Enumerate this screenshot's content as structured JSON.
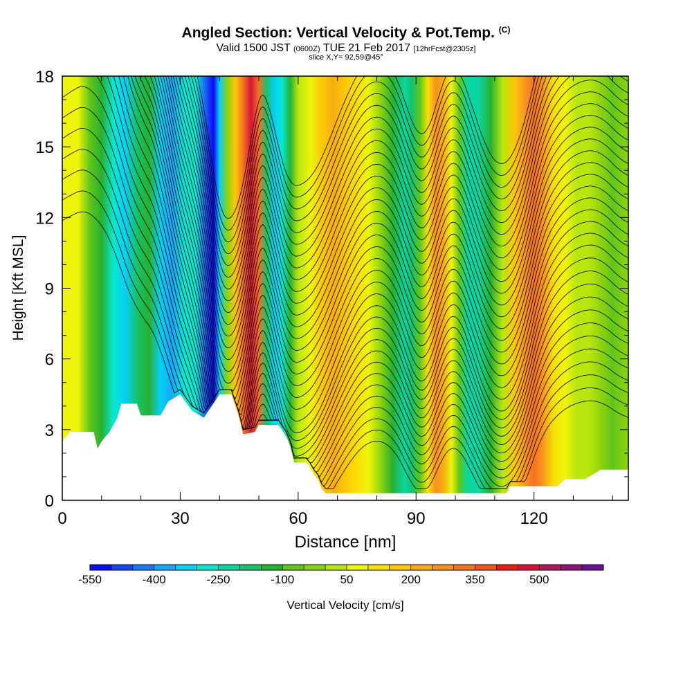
{
  "title": {
    "main": "Angled Section: Vertical Velocity & Pot.Temp.",
    "main_suffix": "(C)",
    "valid_prefix": "Valid 1500 JST",
    "valid_zulu": "(0600Z)",
    "valid_date": "TUE 21 Feb 2017",
    "forecast": "[12hrFcst@2305z]",
    "slice": "slice X,Y= 92,59@45°"
  },
  "chart_data": {
    "type": "heatmap",
    "xlabel": "Distance [nm]",
    "ylabel": "Height [Kft MSL]",
    "xlim": [
      0,
      144
    ],
    "ylim": [
      0,
      18
    ],
    "x_ticks": [
      "0",
      "30",
      "60",
      "90",
      "120"
    ],
    "y_ticks": [
      "0",
      "3",
      "6",
      "9",
      "12",
      "15",
      "18"
    ],
    "colorbar": {
      "label": "Vertical Velocity [cm/s]",
      "tick_labels": [
        "-550",
        "-400",
        "-250",
        "-100",
        "50",
        "200",
        "350",
        "500"
      ],
      "levels": [
        -550,
        -500,
        -450,
        -400,
        -350,
        -300,
        -250,
        -200,
        -150,
        -100,
        -50,
        0,
        50,
        100,
        150,
        200,
        250,
        300,
        350,
        400,
        450,
        500,
        550,
        600
      ],
      "colors": [
        "#0a0cf0",
        "#1846f7",
        "#1a78fa",
        "#14a8fb",
        "#05d0f5",
        "#06e8d2",
        "#0ad6a0",
        "#16c26c",
        "#28b030",
        "#60c61a",
        "#8ed40e",
        "#b8e60e",
        "#eef40a",
        "#f8e004",
        "#fcc808",
        "#f8ae10",
        "#f89020",
        "#f47422",
        "#f2541c",
        "#ee1c14",
        "#d8143a",
        "#b01856",
        "#8c1476",
        "#6c1096"
      ]
    },
    "columns": [
      {
        "x": 0,
        "w": 70
      },
      {
        "x": 4,
        "w": 50
      },
      {
        "x": 7,
        "w": -60
      },
      {
        "x": 10,
        "w": -150
      },
      {
        "x": 13,
        "w": -280
      },
      {
        "x": 16,
        "w": -330
      },
      {
        "x": 19,
        "w": -200
      },
      {
        "x": 22,
        "w": -150
      },
      {
        "x": 25,
        "w": -320
      },
      {
        "x": 28,
        "w": -370
      },
      {
        "x": 31,
        "w": -270
      },
      {
        "x": 34,
        "w": -300
      },
      {
        "x": 37,
        "w": -470
      },
      {
        "x": 38.5,
        "w": -530
      },
      {
        "x": 40,
        "w": -320
      },
      {
        "x": 42,
        "w": -50
      },
      {
        "x": 44,
        "w": 150
      },
      {
        "x": 46,
        "w": 340
      },
      {
        "x": 48,
        "w": 470
      },
      {
        "x": 50,
        "w": 300
      },
      {
        "x": 52,
        "w": -180
      },
      {
        "x": 54,
        "w": -330
      },
      {
        "x": 56,
        "w": -290
      },
      {
        "x": 58,
        "w": -130
      },
      {
        "x": 60,
        "w": 10
      },
      {
        "x": 63,
        "w": 80
      },
      {
        "x": 66,
        "w": 160
      },
      {
        "x": 69,
        "w": 200
      },
      {
        "x": 72,
        "w": 180
      },
      {
        "x": 75,
        "w": 140
      },
      {
        "x": 78,
        "w": 60
      },
      {
        "x": 81,
        "w": -20
      },
      {
        "x": 84,
        "w": -120
      },
      {
        "x": 87,
        "w": -230
      },
      {
        "x": 89,
        "w": -200
      },
      {
        "x": 91,
        "w": -60
      },
      {
        "x": 93,
        "w": 120
      },
      {
        "x": 95,
        "w": 260
      },
      {
        "x": 97,
        "w": 220
      },
      {
        "x": 99,
        "w": 60
      },
      {
        "x": 101,
        "w": -100
      },
      {
        "x": 103,
        "w": -220
      },
      {
        "x": 106,
        "w": -230
      },
      {
        "x": 109,
        "w": -140
      },
      {
        "x": 112,
        "w": 0
      },
      {
        "x": 115,
        "w": 150
      },
      {
        "x": 118,
        "w": 280
      },
      {
        "x": 120,
        "w": 330
      },
      {
        "x": 122,
        "w": 250
      },
      {
        "x": 125,
        "w": 130
      },
      {
        "x": 128,
        "w": 80
      },
      {
        "x": 131,
        "w": 40
      },
      {
        "x": 134,
        "w": 10
      },
      {
        "x": 137,
        "w": -40
      },
      {
        "x": 140,
        "w": -80
      },
      {
        "x": 144,
        "w": -40
      }
    ],
    "terrain": [
      [
        0,
        2.5
      ],
      [
        2,
        2.9
      ],
      [
        8,
        2.9
      ],
      [
        9,
        2.2
      ],
      [
        10,
        2.5
      ],
      [
        12,
        2.9
      ],
      [
        14,
        3.5
      ],
      [
        15,
        4.1
      ],
      [
        19,
        4.1
      ],
      [
        20,
        3.6
      ],
      [
        25,
        3.6
      ],
      [
        27,
        4.2
      ],
      [
        30,
        4.5
      ],
      [
        33,
        3.8
      ],
      [
        36,
        3.5
      ],
      [
        40,
        4.5
      ],
      [
        43,
        4.5
      ],
      [
        45,
        3.5
      ],
      [
        46,
        2.8
      ],
      [
        49,
        2.9
      ],
      [
        50,
        3.2
      ],
      [
        53,
        3.2
      ],
      [
        55,
        3.2
      ],
      [
        57,
        2.7
      ],
      [
        58,
        2.3
      ],
      [
        59,
        1.6
      ],
      [
        62,
        1.6
      ],
      [
        63,
        1.4
      ],
      [
        64,
        1.1
      ],
      [
        65,
        0.9
      ],
      [
        66,
        0.5
      ],
      [
        67,
        0.3
      ],
      [
        113,
        0.3
      ],
      [
        114,
        0.6
      ],
      [
        126,
        0.6
      ],
      [
        128,
        0.9
      ],
      [
        133,
        0.9
      ],
      [
        137,
        1.3
      ],
      [
        140,
        1.3
      ],
      [
        144,
        1.3
      ]
    ]
  }
}
